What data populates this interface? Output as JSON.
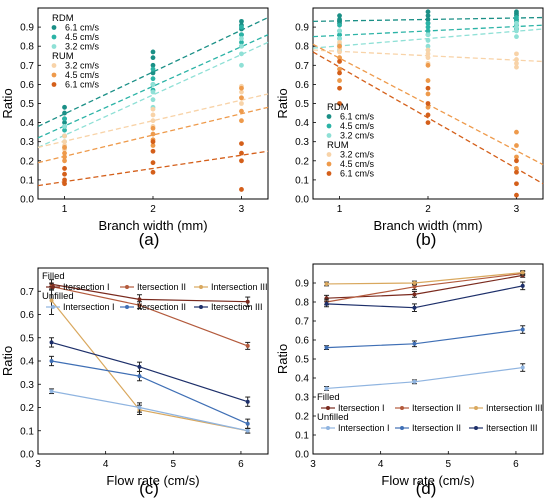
{
  "chart_data": [
    {
      "id": "a",
      "type": "scatter",
      "panel_label": "(a)",
      "xlabel": "Branch width (mm)",
      "ylabel": "Ratio",
      "xlim": [
        0.7,
        3.3
      ],
      "ylim": [
        0,
        1.0
      ],
      "xticks": [
        1,
        2,
        3
      ],
      "yticks": [
        0.0,
        0.1,
        0.2,
        0.3,
        0.4,
        0.5,
        0.6,
        0.7,
        0.8,
        0.9
      ],
      "legend": {
        "placement": "top-left",
        "groups": [
          "RDM",
          "RUM"
        ]
      },
      "series": [
        {
          "name": "6.1 cm/s",
          "group": "RDM",
          "color": "#1a8f86",
          "points": [
            [
              1,
              0.48
            ],
            [
              1,
              0.45
            ],
            [
              1,
              0.42
            ],
            [
              1,
              0.4
            ],
            [
              2,
              0.77
            ],
            [
              2,
              0.74
            ],
            [
              2,
              0.7
            ],
            [
              2,
              0.66
            ],
            [
              3,
              0.93
            ],
            [
              3,
              0.91
            ],
            [
              3,
              0.89
            ],
            [
              3,
              0.86
            ]
          ],
          "fit": [
            0.38,
            0.95
          ]
        },
        {
          "name": "4.5 cm/s",
          "group": "RDM",
          "color": "#2bb3a6",
          "points": [
            [
              1,
              0.42
            ],
            [
              1,
              0.38
            ],
            [
              1,
              0.36
            ],
            [
              1,
              0.33
            ],
            [
              2,
              0.68
            ],
            [
              2,
              0.63
            ],
            [
              2,
              0.6
            ],
            [
              2,
              0.57
            ],
            [
              3,
              0.9
            ],
            [
              3,
              0.86
            ],
            [
              3,
              0.82
            ],
            [
              3,
              0.8
            ]
          ],
          "fit": [
            0.32,
            0.86
          ]
        },
        {
          "name": "3.2 cm/s",
          "group": "RDM",
          "color": "#8fe0d6",
          "points": [
            [
              1,
              0.38
            ],
            [
              1,
              0.33
            ],
            [
              1,
              0.3
            ],
            [
              1,
              0.27
            ],
            [
              2,
              0.6
            ],
            [
              2,
              0.56
            ],
            [
              2,
              0.52
            ],
            [
              2,
              0.48
            ],
            [
              3,
              0.84
            ],
            [
              3,
              0.8
            ],
            [
              3,
              0.76
            ],
            [
              3,
              0.7
            ]
          ],
          "fit": [
            0.27,
            0.82
          ]
        },
        {
          "name": "3.2 cm/s",
          "group": "RUM",
          "color": "#f8d3a8",
          "points": [
            [
              1,
              0.33
            ],
            [
              1,
              0.3
            ],
            [
              1,
              0.28
            ],
            [
              1,
              0.26
            ],
            [
              2,
              0.47
            ],
            [
              2,
              0.44
            ],
            [
              2,
              0.41
            ],
            [
              2,
              0.38
            ],
            [
              3,
              0.59
            ],
            [
              3,
              0.56
            ],
            [
              3,
              0.53
            ],
            [
              3,
              0.5
            ]
          ],
          "fit": [
            0.27,
            0.55
          ]
        },
        {
          "name": "4.5 cm/s",
          "group": "RUM",
          "color": "#ee9a4b",
          "points": [
            [
              1,
              0.27
            ],
            [
              1,
              0.24
            ],
            [
              1,
              0.22
            ],
            [
              1,
              0.2
            ],
            [
              2,
              0.37
            ],
            [
              2,
              0.34
            ],
            [
              2,
              0.31
            ],
            [
              2,
              0.28
            ],
            [
              3,
              0.58
            ],
            [
              3,
              0.53
            ],
            [
              3,
              0.46
            ],
            [
              3,
              0.41
            ]
          ],
          "fit": [
            0.19,
            0.48
          ]
        },
        {
          "name": "6.1 cm/s",
          "group": "RUM",
          "color": "#d45f1a",
          "points": [
            [
              1,
              0.16
            ],
            [
              1,
              0.13
            ],
            [
              1,
              0.1
            ],
            [
              1,
              0.08
            ],
            [
              2,
              0.3
            ],
            [
              2,
              0.25
            ],
            [
              2,
              0.19
            ],
            [
              2,
              0.14
            ],
            [
              3,
              0.29
            ],
            [
              3,
              0.24
            ],
            [
              3,
              0.2
            ],
            [
              3,
              0.05
            ]
          ],
          "fit": [
            0.07,
            0.25
          ]
        }
      ]
    },
    {
      "id": "b",
      "type": "scatter",
      "panel_label": "(b)",
      "xlabel": "Branch width (mm)",
      "ylabel": "Ratio",
      "xlim": [
        0.7,
        3.3
      ],
      "ylim": [
        0,
        1.0
      ],
      "xticks": [
        1,
        2,
        3
      ],
      "yticks": [
        0.0,
        0.1,
        0.2,
        0.3,
        0.4,
        0.5,
        0.6,
        0.7,
        0.8,
        0.9
      ],
      "legend": {
        "placement": "bottom-left",
        "groups": [
          "RDM",
          "RUM"
        ]
      },
      "series": [
        {
          "name": "6.1 cm/s",
          "group": "RDM",
          "color": "#1a8f86",
          "points": [
            [
              1,
              0.96
            ],
            [
              1,
              0.94
            ],
            [
              1,
              0.93
            ],
            [
              1,
              0.92
            ],
            [
              2,
              0.98
            ],
            [
              2,
              0.96
            ],
            [
              2,
              0.94
            ],
            [
              2,
              0.92
            ],
            [
              3,
              0.98
            ],
            [
              3,
              0.97
            ],
            [
              3,
              0.96
            ],
            [
              3,
              0.94
            ]
          ],
          "fit": [
            0.93,
            0.95
          ]
        },
        {
          "name": "4.5 cm/s",
          "group": "RDM",
          "color": "#2bb3a6",
          "points": [
            [
              1,
              0.91
            ],
            [
              1,
              0.88
            ],
            [
              1,
              0.86
            ],
            [
              1,
              0.84
            ],
            [
              2,
              0.92
            ],
            [
              2,
              0.9
            ],
            [
              2,
              0.88
            ],
            [
              2,
              0.86
            ],
            [
              3,
              0.95
            ],
            [
              3,
              0.93
            ],
            [
              3,
              0.91
            ],
            [
              3,
              0.89
            ]
          ],
          "fit": [
            0.85,
            0.91
          ]
        },
        {
          "name": "3.2 cm/s",
          "group": "RDM",
          "color": "#8fe0d6",
          "points": [
            [
              1,
              0.88
            ],
            [
              1,
              0.84
            ],
            [
              1,
              0.81
            ],
            [
              1,
              0.78
            ],
            [
              2,
              0.86
            ],
            [
              2,
              0.83
            ],
            [
              2,
              0.8
            ],
            [
              2,
              0.78
            ],
            [
              3,
              0.92
            ],
            [
              3,
              0.9
            ],
            [
              3,
              0.88
            ],
            [
              3,
              0.85
            ]
          ],
          "fit": [
            0.79,
            0.89
          ]
        },
        {
          "name": "3.2 cm/s",
          "group": "RUM",
          "color": "#f8d3a8",
          "points": [
            [
              1,
              0.82
            ],
            [
              1,
              0.79
            ],
            [
              1,
              0.77
            ],
            [
              1,
              0.74
            ],
            [
              2,
              0.78
            ],
            [
              2,
              0.76
            ],
            [
              2,
              0.74
            ],
            [
              2,
              0.71
            ],
            [
              3,
              0.76
            ],
            [
              3,
              0.73
            ],
            [
              3,
              0.71
            ],
            [
              3,
              0.69
            ]
          ],
          "fit": [
            0.78,
            0.72
          ]
        },
        {
          "name": "4.5 cm/s",
          "group": "RUM",
          "color": "#ee9a4b",
          "points": [
            [
              1,
              0.8
            ],
            [
              1,
              0.74
            ],
            [
              1,
              0.68
            ],
            [
              1,
              0.62
            ],
            [
              2,
              0.7
            ],
            [
              2,
              0.62
            ],
            [
              2,
              0.55
            ],
            [
              2,
              0.48
            ],
            [
              3,
              0.35
            ],
            [
              3,
              0.28
            ],
            [
              3,
              0.22
            ],
            [
              3,
              0.16
            ]
          ],
          "fit": [
            0.81,
            0.18
          ]
        },
        {
          "name": "6.1 cm/s",
          "group": "RUM",
          "color": "#d45f1a",
          "points": [
            [
              1,
              0.72
            ],
            [
              1,
              0.66
            ],
            [
              1,
              0.58
            ],
            [
              1,
              0.5
            ],
            [
              2,
              0.58
            ],
            [
              2,
              0.5
            ],
            [
              2,
              0.44
            ],
            [
              2,
              0.4
            ],
            [
              3,
              0.2
            ],
            [
              3,
              0.14
            ],
            [
              3,
              0.08
            ],
            [
              3,
              0.02
            ]
          ],
          "fit": [
            0.77,
            0.08
          ]
        }
      ]
    },
    {
      "id": "c",
      "type": "line",
      "panel_label": "(c)",
      "xlabel": "Flow rate (cm/s)",
      "ylabel": "Ratio",
      "xlim": [
        3.0,
        6.4
      ],
      "ylim": [
        0,
        0.8
      ],
      "xticks": [
        3,
        4,
        5,
        6
      ],
      "yticks": [
        0.0,
        0.1,
        0.2,
        0.3,
        0.4,
        0.5,
        0.6,
        0.7
      ],
      "legend": {
        "placement": "top",
        "groups": [
          "Filled",
          "Unfilled"
        ]
      },
      "x": [
        3.2,
        4.5,
        6.1
      ],
      "series": [
        {
          "name": "Itersection I",
          "group": "Filled",
          "color": "#7a2a1e",
          "values": [
            0.73,
            0.665,
            0.655
          ],
          "err": [
            0.02,
            0.02,
            0.02
          ]
        },
        {
          "name": "Itersection II",
          "group": "Filled",
          "color": "#b35a3c",
          "values": [
            0.72,
            0.64,
            0.465
          ],
          "err": [
            0.015,
            0.015,
            0.015
          ]
        },
        {
          "name": "Intersection III",
          "group": "Filled",
          "color": "#d9a85e",
          "values": [
            0.66,
            0.19,
            0.1
          ],
          "err": [
            0.06,
            0.02,
            0.01
          ]
        },
        {
          "name": "Intersection I",
          "group": "Unfilled",
          "color": "#8fb4e0",
          "values": [
            0.27,
            0.2,
            0.1
          ],
          "err": [
            0.01,
            0.02,
            0.01
          ]
        },
        {
          "name": "Itersection II",
          "group": "Unfilled",
          "color": "#3f6fb5",
          "values": [
            0.4,
            0.335,
            0.13
          ],
          "err": [
            0.02,
            0.02,
            0.02
          ]
        },
        {
          "name": "Itersection III",
          "group": "Unfilled",
          "color": "#1d2f6a",
          "values": [
            0.48,
            0.375,
            0.225
          ],
          "err": [
            0.02,
            0.02,
            0.02
          ]
        }
      ]
    },
    {
      "id": "d",
      "type": "line",
      "panel_label": "(d)",
      "xlabel": "Flow rate (cm/s)",
      "ylabel": "Ratio",
      "xlim": [
        3.0,
        6.4
      ],
      "ylim": [
        0,
        1.0
      ],
      "xticks": [
        3,
        4,
        5,
        6
      ],
      "yticks": [
        0.0,
        0.1,
        0.2,
        0.3,
        0.4,
        0.5,
        0.6,
        0.7,
        0.8,
        0.9
      ],
      "legend": {
        "placement": "bottom",
        "groups": [
          "Filled",
          "Unfilled"
        ]
      },
      "x": [
        3.2,
        4.5,
        6.1
      ],
      "series": [
        {
          "name": "Itersection I",
          "group": "Filled",
          "color": "#7a2a1e",
          "values": [
            0.82,
            0.84,
            0.94
          ],
          "err": [
            0.015,
            0.015,
            0.01
          ]
        },
        {
          "name": "Itersection II",
          "group": "Filled",
          "color": "#b35a3c",
          "values": [
            0.8,
            0.88,
            0.95
          ],
          "err": [
            0.015,
            0.015,
            0.01
          ]
        },
        {
          "name": "Intersection III",
          "group": "Filled",
          "color": "#d9a85e",
          "values": [
            0.895,
            0.9,
            0.955
          ],
          "err": [
            0.01,
            0.01,
            0.01
          ]
        },
        {
          "name": "Intersection I",
          "group": "Unfilled",
          "color": "#8fb4e0",
          "values": [
            0.345,
            0.38,
            0.455
          ],
          "err": [
            0.01,
            0.01,
            0.02
          ]
        },
        {
          "name": "Itersection II",
          "group": "Unfilled",
          "color": "#3f6fb5",
          "values": [
            0.56,
            0.58,
            0.655
          ],
          "err": [
            0.01,
            0.015,
            0.02
          ]
        },
        {
          "name": "Itersection III",
          "group": "Unfilled",
          "color": "#1d2f6a",
          "values": [
            0.79,
            0.77,
            0.885
          ],
          "err": [
            0.015,
            0.02,
            0.02
          ]
        }
      ]
    }
  ]
}
